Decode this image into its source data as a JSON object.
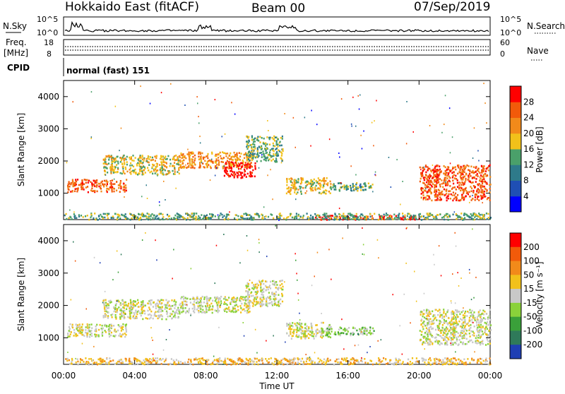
{
  "header": {
    "title": "Hokkaido East (fitACF)",
    "beam": "Beam 00",
    "date": "07/Sep/2019"
  },
  "top_panels": {
    "nsky_label": "N.Sky",
    "nsky_ticks": [
      "10^5",
      "10^0"
    ],
    "nsearch_label": "N.Search",
    "nsearch_ticks": [
      "10^5",
      "10^0"
    ],
    "freq_label": "Freq.",
    "freq_unit": "[MHz]",
    "freq_ticks": [
      "18",
      "8"
    ],
    "nave_label": "Nave",
    "nave_ticks": [
      "60",
      "0"
    ],
    "cpid_label": "CPID",
    "cpid_value": "normal (fast) 151"
  },
  "chart_data": [
    {
      "type": "heatmap",
      "name": "power",
      "ylabel": "Slant Range [km]",
      "ylim": [
        180,
        4500
      ],
      "xlim": [
        0,
        24
      ],
      "y_ticks": [
        "4000",
        "3000",
        "2000",
        "1000"
      ],
      "y_tick_values": [
        4000,
        3000,
        2000,
        1000
      ],
      "colorbar": {
        "label": "Power [dB]",
        "ticks": [
          "28",
          "24",
          "20",
          "16",
          "12",
          "8",
          "4"
        ],
        "colors": [
          "#0000ff",
          "#1f4fb4",
          "#2e7a8a",
          "#4aa06a",
          "#f2c11a",
          "#f28a1a",
          "#f25a0a",
          "#ff0000"
        ]
      },
      "regions": [
        {
          "x": [
            0.2,
            3.5
          ],
          "y": [
            1050,
            1450
          ],
          "level": 6
        },
        {
          "x": [
            2.2,
            6.5
          ],
          "y": [
            1600,
            2200
          ],
          "level": 4
        },
        {
          "x": [
            6.5,
            10.5
          ],
          "y": [
            1800,
            2300
          ],
          "level": 5
        },
        {
          "x": [
            9.0,
            10.8
          ],
          "y": [
            1500,
            2000
          ],
          "level": 7
        },
        {
          "x": [
            10.2,
            12.3
          ],
          "y": [
            2000,
            2800
          ],
          "level": 3
        },
        {
          "x": [
            12.5,
            15.0
          ],
          "y": [
            1000,
            1500
          ],
          "level": 4
        },
        {
          "x": [
            15.0,
            17.5
          ],
          "y": [
            1100,
            1350
          ],
          "level": 3
        },
        {
          "x": [
            20.0,
            24.0
          ],
          "y": [
            800,
            1900
          ],
          "level": 6
        },
        {
          "x": [
            14.0,
            20.0
          ],
          "y": [
            200,
            330
          ],
          "level": 7
        },
        {
          "x": [
            0.0,
            24.0
          ],
          "y": [
            200,
            400
          ],
          "level": 3
        }
      ]
    },
    {
      "type": "heatmap",
      "name": "velocity",
      "ylabel": "Slant Range [km]",
      "ylim": [
        180,
        4500
      ],
      "xlim": [
        0,
        24
      ],
      "y_ticks": [
        "4000",
        "3000",
        "2000",
        "1000"
      ],
      "y_tick_values": [
        4000,
        3000,
        2000,
        1000
      ],
      "x_ticks": [
        "00:00",
        "04:00",
        "08:00",
        "12:00",
        "16:00",
        "20:00",
        "00:00"
      ],
      "x_tick_values": [
        0,
        4,
        8,
        12,
        16,
        20,
        24
      ],
      "xlabel": "Time UT",
      "colorbar": {
        "label": "Velocity [m s⁻¹]",
        "ticks": [
          "200",
          "100",
          "50",
          "15",
          "-15",
          "-50",
          "-100",
          "-200"
        ],
        "colors": [
          "#ff0000",
          "#f25a0a",
          "#f28a1a",
          "#f2c11a",
          "#c8c8c8",
          "#8ad23a",
          "#3aa03a",
          "#2f7a5a",
          "#1f3fb4"
        ]
      },
      "regions": [
        {
          "x": [
            0.2,
            3.5
          ],
          "y": [
            1050,
            1450
          ],
          "level": 4
        },
        {
          "x": [
            2.2,
            6.5
          ],
          "y": [
            1600,
            2200
          ],
          "level": 4
        },
        {
          "x": [
            6.5,
            10.5
          ],
          "y": [
            1800,
            2300
          ],
          "level": 4
        },
        {
          "x": [
            10.2,
            12.3
          ],
          "y": [
            2000,
            2800
          ],
          "level": 4
        },
        {
          "x": [
            12.5,
            15.0
          ],
          "y": [
            1000,
            1500
          ],
          "level": 4
        },
        {
          "x": [
            14.5,
            17.5
          ],
          "y": [
            1100,
            1350
          ],
          "level": 5
        },
        {
          "x": [
            20.0,
            24.0
          ],
          "y": [
            800,
            1900
          ],
          "level": 4
        },
        {
          "x": [
            0.0,
            24.0
          ],
          "y": [
            200,
            400
          ],
          "level": 3
        }
      ]
    }
  ]
}
